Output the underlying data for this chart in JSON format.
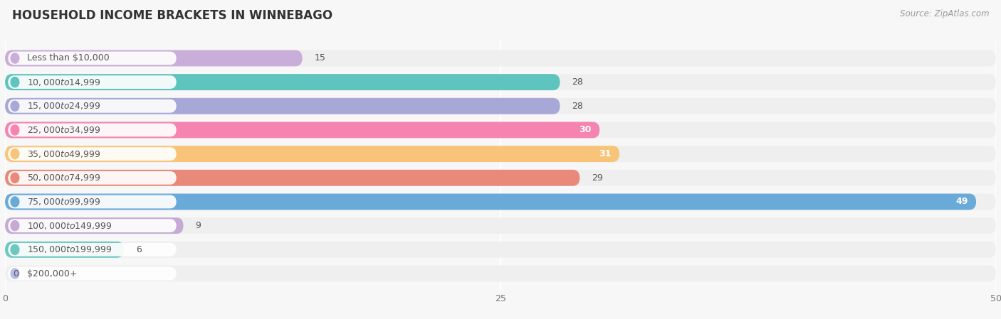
{
  "title": "HOUSEHOLD INCOME BRACKETS IN WINNEBAGO",
  "source": "Source: ZipAtlas.com",
  "categories": [
    "Less than $10,000",
    "$10,000 to $14,999",
    "$15,000 to $24,999",
    "$25,000 to $34,999",
    "$35,000 to $49,999",
    "$50,000 to $74,999",
    "$75,000 to $99,999",
    "$100,000 to $149,999",
    "$150,000 to $199,999",
    "$200,000+"
  ],
  "values": [
    15,
    28,
    28,
    30,
    31,
    29,
    49,
    9,
    6,
    0
  ],
  "bar_colors": [
    "#c9aed9",
    "#5ec4be",
    "#a8a8d8",
    "#f585b0",
    "#f8c47a",
    "#e8897a",
    "#6aaad8",
    "#c4aad4",
    "#6ec8c0",
    "#b8bce8"
  ],
  "xlim": [
    0,
    50
  ],
  "xticks": [
    0,
    25,
    50
  ],
  "background_color": "#f7f7f7",
  "row_bg_color": "#efefef",
  "title_fontsize": 12,
  "label_fontsize": 9,
  "value_fontsize": 9,
  "source_fontsize": 8.5,
  "value_inside_color": "white",
  "value_outside_color": "#555555",
  "label_color": "#555555",
  "inside_threshold": 30
}
